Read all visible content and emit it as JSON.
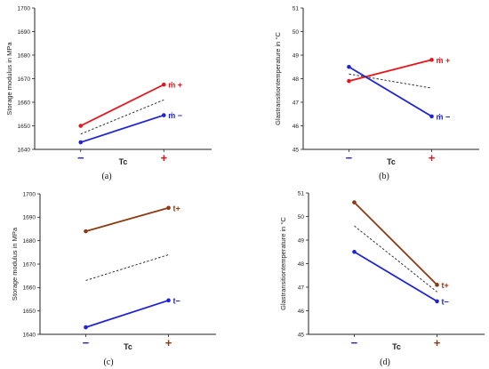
{
  "colors": {
    "red": "#e8141c",
    "blue": "#1f23d6",
    "brown": "#8b3a12",
    "dash": "#333333",
    "axis": "#222222"
  },
  "chart_data": [
    {
      "type": "line",
      "caption": "(a)",
      "ylabel": "Storage modulus in MPa",
      "xlabel": "Tc",
      "categories": [
        "−",
        "+"
      ],
      "category_colors": [
        "blue",
        "red"
      ],
      "ylim": [
        1640,
        1700
      ],
      "yticks": [
        "1640",
        "1650",
        "1660",
        "1670",
        "1680",
        "1690",
        "1700"
      ],
      "series": [
        {
          "name": "ṁ +",
          "color": "red",
          "values": [
            1650,
            1667.5
          ]
        },
        {
          "name": "ṁ −",
          "color": "blue",
          "values": [
            1643,
            1654.5
          ]
        },
        {
          "name": "",
          "color": "dash",
          "dashed": true,
          "values": [
            1646.5,
            1661
          ]
        }
      ]
    },
    {
      "type": "line",
      "caption": "(b)",
      "ylabel": "Glastransitiontemperature in °C",
      "xlabel": "Tc",
      "categories": [
        "−",
        "+"
      ],
      "category_colors": [
        "blue",
        "red"
      ],
      "ylim": [
        45,
        51
      ],
      "yticks": [
        "45",
        "46",
        "47",
        "48",
        "49",
        "50",
        "51"
      ],
      "series": [
        {
          "name": "ṁ +",
          "color": "red",
          "values": [
            47.9,
            48.8
          ]
        },
        {
          "name": "ṁ −",
          "color": "blue",
          "values": [
            48.5,
            46.4
          ]
        },
        {
          "name": "",
          "color": "dash",
          "dashed": true,
          "values": [
            48.2,
            47.6
          ]
        }
      ]
    },
    {
      "type": "line",
      "caption": "(c)",
      "ylabel": "Storage modulus in MPa",
      "xlabel": "Tc",
      "categories": [
        "−",
        "+"
      ],
      "category_colors": [
        "blue",
        "brown"
      ],
      "ylim": [
        1640,
        1700
      ],
      "yticks": [
        "1640",
        "1650",
        "1660",
        "1670",
        "1680",
        "1690",
        "1700"
      ],
      "series": [
        {
          "name": "t+",
          "color": "brown",
          "values": [
            1684,
            1694
          ]
        },
        {
          "name": "t−",
          "color": "blue",
          "values": [
            1643,
            1654.5
          ]
        },
        {
          "name": "",
          "color": "dash",
          "dashed": true,
          "values": [
            1663,
            1674
          ]
        }
      ]
    },
    {
      "type": "line",
      "caption": "(d)",
      "ylabel": "Glastransitiontemperature in °C",
      "xlabel": "Tc",
      "categories": [
        "−",
        "+"
      ],
      "category_colors": [
        "blue",
        "brown"
      ],
      "ylim": [
        45,
        51
      ],
      "yticks": [
        "45",
        "46",
        "47",
        "48",
        "49",
        "50",
        "51"
      ],
      "series": [
        {
          "name": "t+",
          "color": "brown",
          "values": [
            50.6,
            47.1
          ]
        },
        {
          "name": "t−",
          "color": "blue",
          "values": [
            48.5,
            46.4
          ]
        },
        {
          "name": "",
          "color": "dash",
          "dashed": true,
          "values": [
            49.6,
            46.8
          ]
        }
      ]
    }
  ]
}
